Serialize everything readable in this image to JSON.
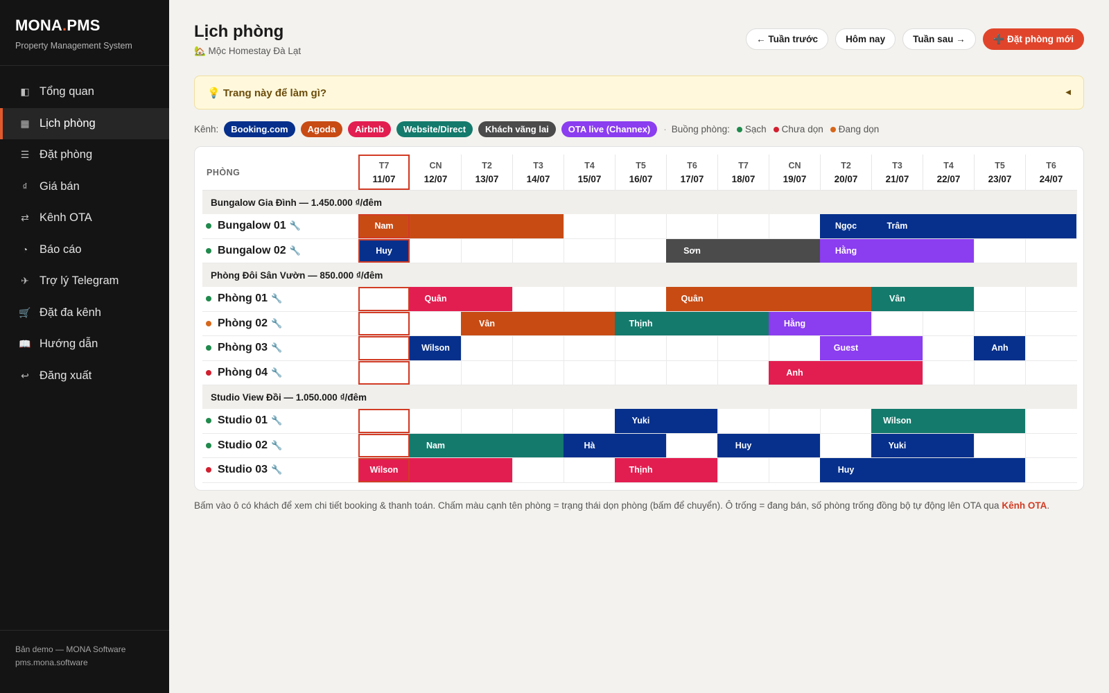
{
  "sidebar": {
    "brand_left": "MONA",
    "brand_dot": ".",
    "brand_right": "PMS",
    "brand_sub": "Property Management System",
    "items": [
      {
        "label": "Tổng quan",
        "icon": "sidebar-panel-icon",
        "glyph": "◧"
      },
      {
        "label": "Lịch phòng",
        "icon": "calendar-grid-icon",
        "glyph": "▦"
      },
      {
        "label": "Đặt phòng",
        "icon": "list-icon",
        "glyph": "☰"
      },
      {
        "label": "Giá bán",
        "icon": "dong-currency-icon",
        "glyph": "₫"
      },
      {
        "label": "Kênh OTA",
        "icon": "sync-arrows-icon",
        "glyph": "⇄"
      },
      {
        "label": "Báo cáo",
        "icon": "pie-chart-icon",
        "glyph": "◔"
      },
      {
        "label": "Trợ lý Telegram",
        "icon": "airplane-icon",
        "glyph": "✈"
      },
      {
        "label": "Đặt đa kênh",
        "icon": "shopping-cart-icon",
        "glyph": "🛒"
      },
      {
        "label": "Hướng dẫn",
        "icon": "book-icon",
        "glyph": "📖"
      },
      {
        "label": "Đăng xuất",
        "icon": "logout-return-icon",
        "glyph": "↩"
      }
    ],
    "active_index": 1,
    "footer_line1": "Bản demo — MONA Software",
    "footer_line2": "pms.mona.software"
  },
  "header": {
    "title": "Lịch phòng",
    "subtitle": "🏡 Mộc Homestay Đà Lạt",
    "prev_week": "← Tuần trước",
    "today": "Hôm nay",
    "next_week": "Tuần sau →",
    "new_booking": "➕ Đặt phòng mới"
  },
  "info_box": {
    "label": "💡 Trang này để làm gì?",
    "caret": "◀"
  },
  "legend": {
    "channels_label": "Kênh:",
    "separator": "·",
    "room_status_label": "Buồng phòng:",
    "statuses": [
      {
        "key": "clean",
        "label": "Sạch",
        "color": "#1f8a4c"
      },
      {
        "key": "dirty",
        "label": "Chưa dọn",
        "color": "#d21f2f"
      },
      {
        "key": "cleaning",
        "label": "Đang dọn",
        "color": "#d6671a"
      }
    ]
  },
  "channels": [
    {
      "key": "booking",
      "label": "Booking.com",
      "color": "#06308c"
    },
    {
      "key": "agoda",
      "label": "Agoda",
      "color": "#c84b14"
    },
    {
      "key": "airbnb",
      "label": "Airbnb",
      "color": "#e21e50"
    },
    {
      "key": "website",
      "label": "Website/Direct",
      "color": "#147a6c"
    },
    {
      "key": "walkin",
      "label": "Khách vãng lai",
      "color": "#4b4b4b"
    },
    {
      "key": "ota",
      "label": "OTA live (Channex)",
      "color": "#8b3df0"
    }
  ],
  "calendar": {
    "room_header": "PHÒNG",
    "today_index": 0,
    "days": [
      {
        "dow": "T7",
        "date": "11/07"
      },
      {
        "dow": "CN",
        "date": "12/07"
      },
      {
        "dow": "T2",
        "date": "13/07"
      },
      {
        "dow": "T3",
        "date": "14/07"
      },
      {
        "dow": "T4",
        "date": "15/07"
      },
      {
        "dow": "T5",
        "date": "16/07"
      },
      {
        "dow": "T6",
        "date": "17/07"
      },
      {
        "dow": "T7",
        "date": "18/07"
      },
      {
        "dow": "CN",
        "date": "19/07"
      },
      {
        "dow": "T2",
        "date": "20/07"
      },
      {
        "dow": "T3",
        "date": "21/07"
      },
      {
        "dow": "T4",
        "date": "22/07"
      },
      {
        "dow": "T5",
        "date": "23/07"
      },
      {
        "dow": "T6",
        "date": "24/07"
      }
    ],
    "groups": [
      {
        "title": "Bungalow Gia Đình — 1.450.000 ₫/đêm",
        "rooms": [
          {
            "name": "Bungalow 01",
            "status": "clean",
            "bookings": [
              {
                "start": 0,
                "len": 4,
                "guest": "Nam",
                "channel": "agoda"
              },
              {
                "start": 9,
                "len": 1,
                "guest": "Ngọc",
                "channel": "booking"
              },
              {
                "start": 10,
                "len": 4,
                "guest": "Trâm",
                "channel": "booking"
              }
            ]
          },
          {
            "name": "Bungalow 02",
            "status": "clean",
            "bookings": [
              {
                "start": 0,
                "len": 1,
                "guest": "Huy",
                "channel": "booking"
              },
              {
                "start": 6,
                "len": 3,
                "guest": "Sơn",
                "channel": "walkin"
              },
              {
                "start": 9,
                "len": 3,
                "guest": "Hằng",
                "channel": "ota"
              }
            ]
          }
        ]
      },
      {
        "title": "Phòng Đôi Sân Vườn — 850.000 ₫/đêm",
        "rooms": [
          {
            "name": "Phòng 01",
            "status": "clean",
            "bookings": [
              {
                "start": 1,
                "len": 2,
                "guest": "Quân",
                "channel": "airbnb"
              },
              {
                "start": 6,
                "len": 4,
                "guest": "Quân",
                "channel": "agoda"
              },
              {
                "start": 10,
                "len": 2,
                "guest": "Vân",
                "channel": "website"
              }
            ]
          },
          {
            "name": "Phòng 02",
            "status": "cleaning",
            "bookings": [
              {
                "start": 2,
                "len": 3,
                "guest": "Vân",
                "channel": "agoda"
              },
              {
                "start": 5,
                "len": 3,
                "guest": "Thịnh",
                "channel": "website"
              },
              {
                "start": 8,
                "len": 2,
                "guest": "Hằng",
                "channel": "ota"
              }
            ]
          },
          {
            "name": "Phòng 03",
            "status": "clean",
            "bookings": [
              {
                "start": 1,
                "len": 1,
                "guest": "Wilson",
                "channel": "booking"
              },
              {
                "start": 9,
                "len": 2,
                "guest": "Guest",
                "channel": "ota"
              },
              {
                "start": 12,
                "len": 1,
                "guest": "Anh",
                "channel": "booking"
              }
            ]
          },
          {
            "name": "Phòng 04",
            "status": "dirty",
            "bookings": [
              {
                "start": 8,
                "len": 3,
                "guest": "Anh",
                "channel": "airbnb"
              }
            ]
          }
        ]
      },
      {
        "title": "Studio View Đồi — 1.050.000 ₫/đêm",
        "rooms": [
          {
            "name": "Studio 01",
            "status": "clean",
            "bookings": [
              {
                "start": 5,
                "len": 2,
                "guest": "Yuki",
                "channel": "booking"
              },
              {
                "start": 10,
                "len": 3,
                "guest": "Wilson",
                "channel": "website"
              }
            ]
          },
          {
            "name": "Studio 02",
            "status": "clean",
            "bookings": [
              {
                "start": 1,
                "len": 3,
                "guest": "Nam",
                "channel": "website"
              },
              {
                "start": 4,
                "len": 2,
                "guest": "Hà",
                "channel": "booking"
              },
              {
                "start": 7,
                "len": 2,
                "guest": "Huy",
                "channel": "booking"
              },
              {
                "start": 10,
                "len": 2,
                "guest": "Yuki",
                "channel": "booking"
              }
            ]
          },
          {
            "name": "Studio 03",
            "status": "dirty",
            "bookings": [
              {
                "start": 0,
                "len": 3,
                "guest": "Wilson",
                "channel": "airbnb"
              },
              {
                "start": 5,
                "len": 2,
                "guest": "Thịnh",
                "channel": "airbnb"
              },
              {
                "start": 9,
                "len": 4,
                "guest": "Huy",
                "channel": "booking"
              }
            ]
          }
        ]
      }
    ],
    "wrench_glyph": "🔧"
  },
  "footnote": {
    "text": "Bấm vào ô có khách để xem chi tiết booking & thanh toán. Chấm màu cạnh tên phòng = trạng thái dọn phòng (bấm để chuyển). Ô trống = đang bán, số phòng trống đồng bộ tự động lên OTA qua ",
    "link": "Kênh OTA",
    "end": "."
  }
}
